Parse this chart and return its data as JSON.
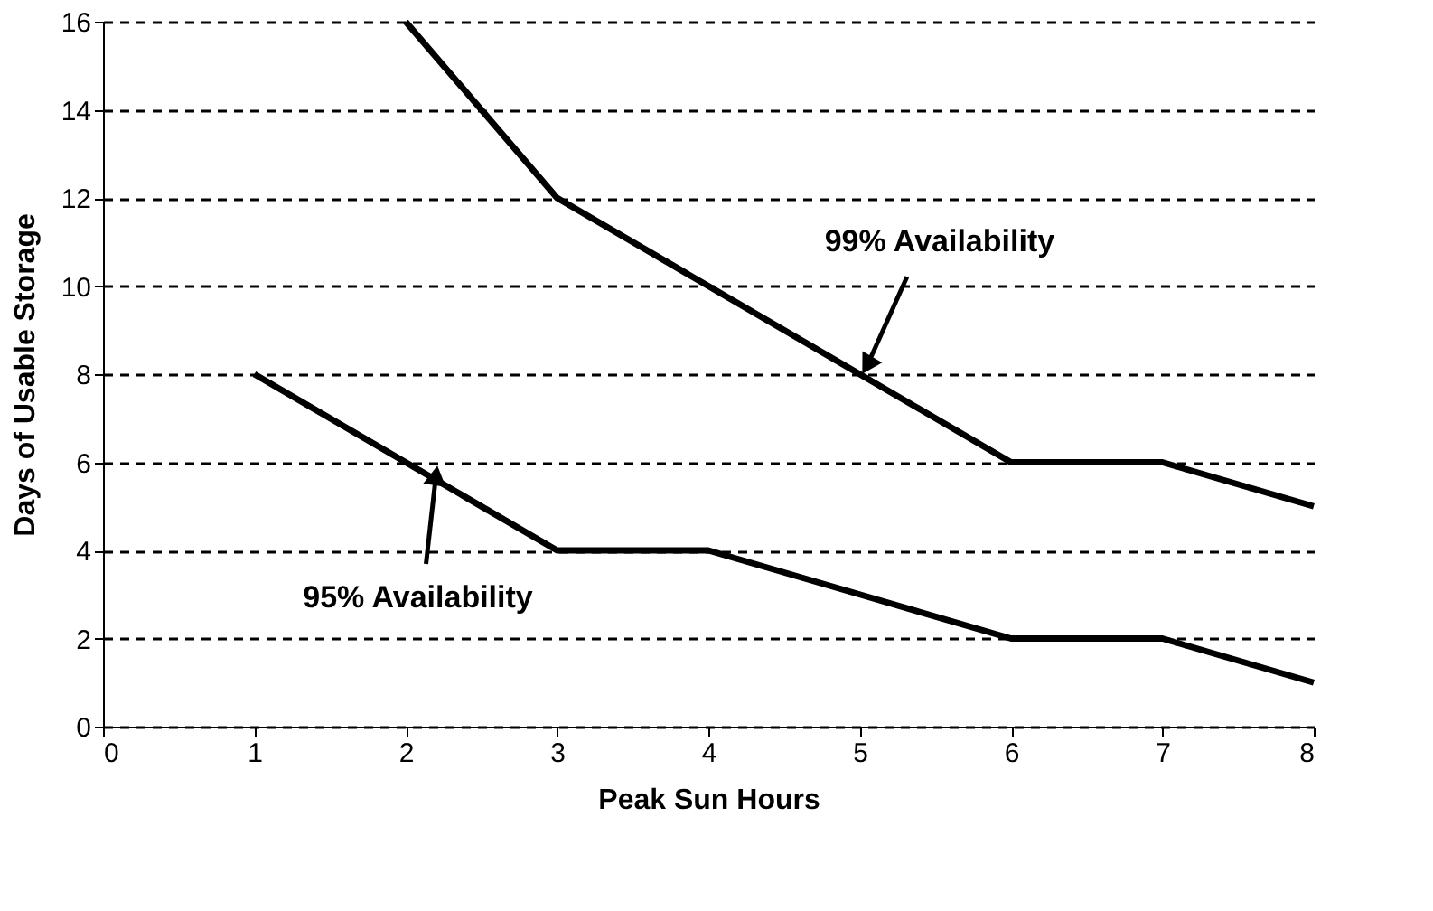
{
  "chart_data": {
    "type": "line",
    "xlabel": "Peak Sun Hours",
    "ylabel": "Days of Usable Storage",
    "xlim": [
      0,
      8
    ],
    "xticks": [
      0,
      1,
      2,
      3,
      4,
      5,
      6,
      7,
      8
    ],
    "ylim": [
      0,
      16
    ],
    "yticks": [
      0,
      2,
      4,
      6,
      8,
      10,
      12,
      14,
      16
    ],
    "grid": "y",
    "line_style": "solid",
    "marker": "none",
    "series": [
      {
        "color": "#000000",
        "x": [
          2,
          3,
          4,
          5,
          6,
          7,
          8
        ],
        "values": [
          16,
          12,
          10,
          8,
          6,
          6,
          5
        ]
      },
      {
        "color": "#000000",
        "x": [
          1,
          2,
          3,
          4,
          5,
          6,
          7,
          8
        ],
        "values": [
          8,
          6,
          4,
          4,
          3,
          2,
          2,
          1
        ]
      }
    ],
    "annotations": [
      {
        "text": "99% Availability",
        "x": 5.05,
        "y": 8.2
      },
      {
        "text": "95% Availability",
        "x": 2.2,
        "y": 5.7
      }
    ]
  }
}
